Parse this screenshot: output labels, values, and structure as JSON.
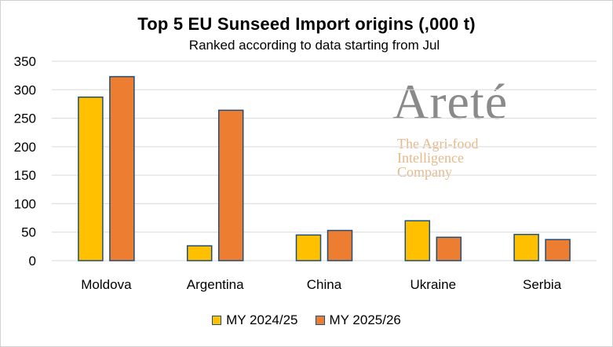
{
  "chart_data": {
    "type": "bar",
    "title": "Top 5 EU Sunseed Import origins (,000 t)",
    "subtitle": "Ranked according to data starting from Jul",
    "categories": [
      "Moldova",
      "Argentina",
      "China",
      "Ukraine",
      "Serbia"
    ],
    "series": [
      {
        "name": "MY 2024/25",
        "color": "#ffc000",
        "values": [
          287,
          26,
          45,
          70,
          46
        ]
      },
      {
        "name": "MY 2025/26",
        "color": "#ed7d31",
        "values": [
          323,
          264,
          53,
          41,
          37
        ]
      }
    ],
    "ylim": [
      0,
      350
    ],
    "yticks": [
      "0",
      "50",
      "100",
      "150",
      "200",
      "250",
      "300",
      "350"
    ],
    "grid": true,
    "legend_position": "bottom",
    "bar_outline_color": "#1f4e79",
    "gridline_color": "#d9d9d9"
  },
  "watermark": {
    "brand": "Areté",
    "tagline": "The Agri-food\nIntelligence\nCompany"
  }
}
